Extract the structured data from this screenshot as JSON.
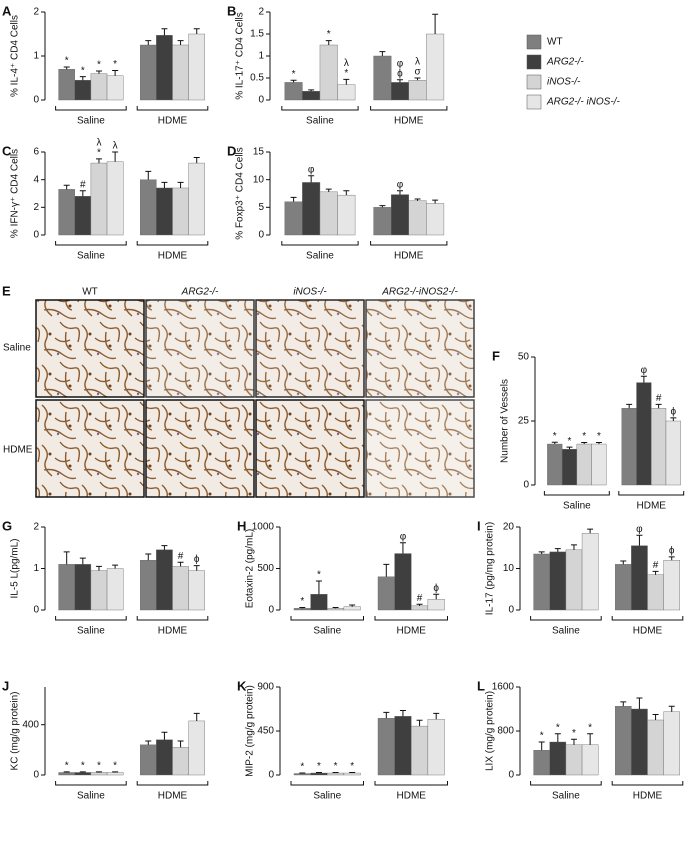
{
  "legend": [
    {
      "name": "WT",
      "color": "#7f7f7f"
    },
    {
      "name": "ARG2-/-",
      "color": "#3f3f3f"
    },
    {
      "name": "iNOS-/-",
      "color": "#d4d4d4"
    },
    {
      "name": "ARG2-/- iNOS-/-",
      "color": "#e6e6e6"
    }
  ],
  "panel_e": {
    "letter": "E",
    "columns": [
      "WT",
      "ARG2-/-",
      "iNOS-/-",
      "ARG2-/-iNOS2-/-"
    ],
    "rows": [
      "Saline",
      "HDME"
    ]
  },
  "chart_data": [
    {
      "type": "bar",
      "letter": "A",
      "ylabel": "% IL-4⁺ CD4 Cells",
      "ylim": [
        0,
        2
      ],
      "yticks": [
        0,
        1,
        2
      ],
      "groups": [
        {
          "name": "Saline",
          "values": [
            0.7,
            0.45,
            0.6,
            0.55
          ],
          "errors": [
            0.05,
            0.08,
            0.06,
            0.12
          ],
          "marks": [
            [
              "*"
            ],
            [
              "*"
            ],
            [
              "*"
            ],
            [
              "*"
            ]
          ]
        },
        {
          "name": "HDME",
          "values": [
            1.25,
            1.47,
            1.25,
            1.5
          ],
          "errors": [
            0.1,
            0.15,
            0.1,
            0.12
          ],
          "marks": [
            null,
            null,
            null,
            null
          ]
        }
      ]
    },
    {
      "type": "bar",
      "letter": "B",
      "ylabel": "% IL-17⁺ CD4 Cells",
      "ylim": [
        0,
        2
      ],
      "yticks": [
        0,
        0.5,
        1,
        1.5,
        2
      ],
      "groups": [
        {
          "name": "Saline",
          "values": [
            0.4,
            0.2,
            1.25,
            0.35
          ],
          "errors": [
            0.05,
            0.03,
            0.1,
            0.12
          ],
          "marks": [
            [
              "*"
            ],
            null,
            [
              "*"
            ],
            [
              "*",
              "λ"
            ]
          ]
        },
        {
          "name": "HDME",
          "values": [
            1.0,
            0.4,
            0.45,
            1.5
          ],
          "errors": [
            0.1,
            0.06,
            0.05,
            0.45
          ],
          "marks": [
            null,
            [
              "ϕ",
              "φ"
            ],
            [
              "σ",
              "λ"
            ],
            null
          ]
        }
      ]
    },
    {
      "type": "bar",
      "letter": "C",
      "ylabel": "% IFN-γ⁺ CD4 Cells",
      "ylim": [
        0,
        6
      ],
      "yticks": [
        0,
        2,
        4,
        6
      ],
      "groups": [
        {
          "name": "Saline",
          "values": [
            3.3,
            2.8,
            5.2,
            5.3
          ],
          "errors": [
            0.3,
            0.4,
            0.3,
            0.7
          ],
          "marks": [
            null,
            [
              "#"
            ],
            [
              "*",
              "λ"
            ],
            [
              "λ"
            ]
          ]
        },
        {
          "name": "HDME",
          "values": [
            4.0,
            3.4,
            3.4,
            5.2
          ],
          "errors": [
            0.6,
            0.4,
            0.4,
            0.4
          ],
          "marks": [
            null,
            null,
            null,
            null
          ]
        }
      ]
    },
    {
      "type": "bar",
      "letter": "D",
      "ylabel": "% Foxp3⁺ CD4 Cells",
      "ylim": [
        0,
        15
      ],
      "yticks": [
        0,
        5,
        10,
        15
      ],
      "groups": [
        {
          "name": "Saline",
          "values": [
            6,
            9.5,
            7.8,
            7.2
          ],
          "errors": [
            0.8,
            1.2,
            0.5,
            0.8
          ],
          "marks": [
            null,
            [
              "φ"
            ],
            null,
            null
          ]
        },
        {
          "name": "HDME",
          "values": [
            5.0,
            7.3,
            6.2,
            5.7
          ],
          "errors": [
            0.3,
            0.7,
            0.3,
            0.6
          ],
          "marks": [
            null,
            [
              "φ"
            ],
            null,
            null
          ]
        }
      ]
    },
    {
      "type": "bar",
      "letter": "F",
      "ylabel": "Number of Vessels",
      "ylim": [
        0,
        50
      ],
      "yticks": [
        0,
        25,
        50
      ],
      "groups": [
        {
          "name": "Saline",
          "values": [
            16,
            14,
            16,
            16
          ],
          "errors": [
            0.7,
            0.8,
            0.6,
            0.6
          ],
          "marks": [
            [
              "*"
            ],
            [
              "*"
            ],
            [
              "*"
            ],
            [
              "*"
            ]
          ]
        },
        {
          "name": "HDME",
          "values": [
            30,
            40,
            30,
            25
          ],
          "errors": [
            1.5,
            2.5,
            1.5,
            1.2
          ],
          "marks": [
            null,
            [
              "φ"
            ],
            [
              "#"
            ],
            [
              "ϕ"
            ]
          ]
        }
      ]
    },
    {
      "type": "bar",
      "letter": "G",
      "ylabel": "IL-5 L(pg/mL)",
      "ylim": [
        0,
        2
      ],
      "yticks": [
        0,
        1,
        2
      ],
      "groups": [
        {
          "name": "Saline",
          "values": [
            1.1,
            1.1,
            0.95,
            1.0
          ],
          "errors": [
            0.3,
            0.15,
            0.1,
            0.08
          ],
          "marks": [
            null,
            null,
            null,
            null
          ]
        },
        {
          "name": "HDME",
          "values": [
            1.2,
            1.45,
            1.05,
            0.95
          ],
          "errors": [
            0.15,
            0.1,
            0.1,
            0.12
          ],
          "marks": [
            null,
            null,
            [
              "#"
            ],
            [
              "ϕ"
            ]
          ]
        }
      ]
    },
    {
      "type": "bar",
      "letter": "H",
      "ylabel": "Eotaxin-2 (pg/mL)",
      "ylim": [
        0,
        1000
      ],
      "yticks": [
        0,
        500,
        1000
      ],
      "groups": [
        {
          "name": "Saline",
          "values": [
            20,
            190,
            20,
            40
          ],
          "errors": [
            10,
            160,
            10,
            20
          ],
          "marks": [
            [
              "*"
            ],
            [
              "*"
            ],
            null,
            null
          ]
        },
        {
          "name": "HDME",
          "values": [
            400,
            680,
            50,
            130
          ],
          "errors": [
            150,
            130,
            20,
            60
          ],
          "marks": [
            null,
            [
              "φ"
            ],
            [
              "#"
            ],
            [
              "ϕ"
            ]
          ]
        }
      ]
    },
    {
      "type": "bar",
      "letter": "I",
      "ylabel": "IL-17 (pg/mg protein)",
      "ylim": [
        0,
        20
      ],
      "yticks": [
        0,
        10,
        20
      ],
      "groups": [
        {
          "name": "Saline",
          "values": [
            13.5,
            14,
            14.5,
            18.5
          ],
          "errors": [
            0.5,
            0.8,
            1.2,
            1.0
          ],
          "marks": [
            null,
            null,
            null,
            null
          ]
        },
        {
          "name": "HDME",
          "values": [
            11,
            15.5,
            8.5,
            12
          ],
          "errors": [
            0.8,
            2.5,
            0.8,
            0.8
          ],
          "marks": [
            null,
            [
              "φ"
            ],
            [
              "#"
            ],
            [
              "ϕ"
            ]
          ]
        }
      ]
    },
    {
      "type": "bar",
      "letter": "J",
      "ylabel": "KC (mg/g protein)",
      "ylim": [
        0,
        700
      ],
      "yticks": [
        0,
        400
      ],
      "groups": [
        {
          "name": "Saline",
          "values": [
            20,
            20,
            20,
            20
          ],
          "errors": [
            5,
            5,
            5,
            5
          ],
          "marks": [
            [
              "*"
            ],
            [
              "*"
            ],
            [
              "*"
            ],
            [
              "*"
            ]
          ]
        },
        {
          "name": "HDME",
          "values": [
            240,
            280,
            220,
            430
          ],
          "errors": [
            30,
            60,
            50,
            60
          ],
          "marks": [
            null,
            null,
            null,
            null
          ]
        }
      ]
    },
    {
      "type": "bar",
      "letter": "K",
      "ylabel": "MIP-2 (mg/g protein)",
      "ylim": [
        0,
        900
      ],
      "yticks": [
        0,
        450,
        900
      ],
      "groups": [
        {
          "name": "Saline",
          "values": [
            15,
            20,
            20,
            20
          ],
          "errors": [
            5,
            5,
            5,
            5
          ],
          "marks": [
            [
              "*"
            ],
            [
              "*"
            ],
            [
              "*"
            ],
            [
              "*"
            ]
          ]
        },
        {
          "name": "HDME",
          "values": [
            580,
            600,
            500,
            570
          ],
          "errors": [
            60,
            60,
            60,
            60
          ],
          "marks": [
            null,
            null,
            null,
            null
          ]
        }
      ]
    },
    {
      "type": "bar",
      "letter": "L",
      "ylabel": "LIX (mg/g protein)",
      "ylim": [
        0,
        1600
      ],
      "yticks": [
        0,
        800,
        1600
      ],
      "groups": [
        {
          "name": "Saline",
          "values": [
            450,
            600,
            550,
            550
          ],
          "errors": [
            150,
            150,
            100,
            200
          ],
          "marks": [
            [
              "*"
            ],
            [
              "*"
            ],
            [
              "*"
            ],
            [
              "*"
            ]
          ]
        },
        {
          "name": "HDME",
          "values": [
            1250,
            1200,
            1000,
            1150
          ],
          "errors": [
            80,
            200,
            100,
            100
          ],
          "marks": [
            null,
            null,
            null,
            null
          ]
        }
      ]
    }
  ]
}
